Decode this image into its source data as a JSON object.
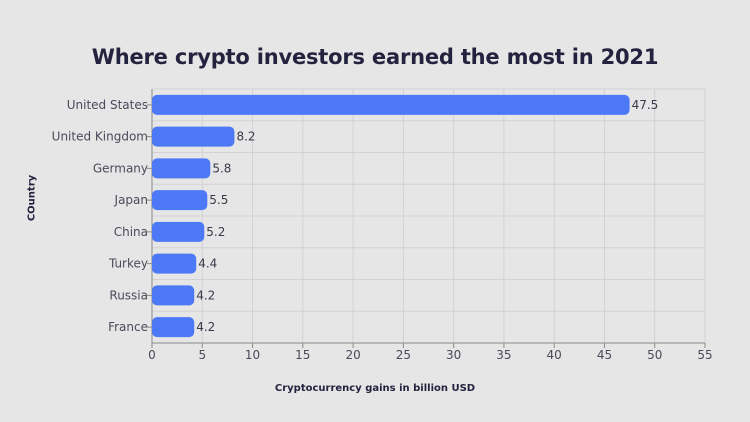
{
  "chart_data": {
    "type": "bar",
    "orientation": "horizontal",
    "title": "Where crypto investors earned the most in 2021",
    "xlabel": "Cryptocurrency gains in billion USD",
    "ylabel": "COuntry",
    "categories": [
      "United States",
      "United Kingdom",
      "Germany",
      "Japan",
      "China",
      "Turkey",
      "Russia",
      "France"
    ],
    "values": [
      47.5,
      8.2,
      5.8,
      5.5,
      5.2,
      4.4,
      4.2,
      4.2
    ],
    "value_labels": [
      "47.5",
      "8.2",
      "5.8",
      "5.5",
      "5.2",
      "4.4",
      "4.2",
      "4.2"
    ],
    "xlim": [
      0,
      55
    ],
    "xticks": [
      "0",
      "5",
      "10",
      "15",
      "20",
      "25",
      "30",
      "35",
      "40",
      "45",
      "50",
      "55"
    ],
    "grid": true,
    "legend": "none",
    "bar_color": "#4d79f7",
    "background_color": "#e6e6e6"
  }
}
